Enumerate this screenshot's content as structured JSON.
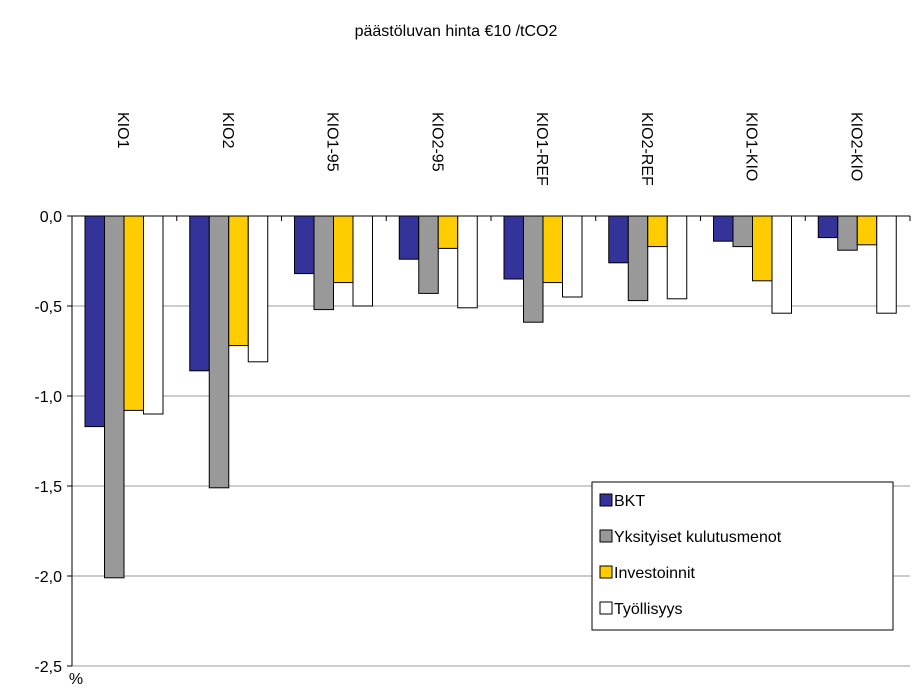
{
  "chart_data": {
    "type": "bar",
    "title": "päästöluvan hinta €10 /tCO2",
    "y_label": "%",
    "categories": [
      "KIO1",
      "KIO2",
      "KIO1-95",
      "KIO2-95",
      "KIO1-REF",
      "KIO2-REF",
      "KIO1-KIO",
      "KIO2-KIO"
    ],
    "series": [
      {
        "name": "BKT",
        "color": "#333399",
        "values": [
          -1.17,
          -0.86,
          -0.32,
          -0.24,
          -0.35,
          -0.26,
          -0.14,
          -0.12
        ]
      },
      {
        "name": "Yksityiset kulutusmenot",
        "color": "#999999",
        "values": [
          -2.01,
          -1.51,
          -0.52,
          -0.43,
          -0.59,
          -0.47,
          -0.17,
          -0.19
        ]
      },
      {
        "name": "Investoinnit",
        "color": "#ffcc00",
        "values": [
          -1.08,
          -0.72,
          -0.37,
          -0.18,
          -0.37,
          -0.17,
          -0.36,
          -0.16
        ]
      },
      {
        "name": "Työllisyys",
        "color": "#ffffff",
        "values": [
          -1.1,
          -0.81,
          -0.5,
          -0.51,
          -0.45,
          -0.46,
          -0.54,
          -0.54
        ]
      }
    ],
    "ylim": [
      -2.5,
      0
    ],
    "yticks": [
      {
        "value": 0,
        "label": "0,0"
      },
      {
        "value": -0.5,
        "label": "-0,5"
      },
      {
        "value": -1.0,
        "label": "-1,0"
      },
      {
        "value": -1.5,
        "label": "-1,5"
      },
      {
        "value": -2.0,
        "label": "-2,0"
      },
      {
        "value": -2.5,
        "label": "-2,5"
      }
    ],
    "grid": true,
    "legend": "lower-right"
  }
}
